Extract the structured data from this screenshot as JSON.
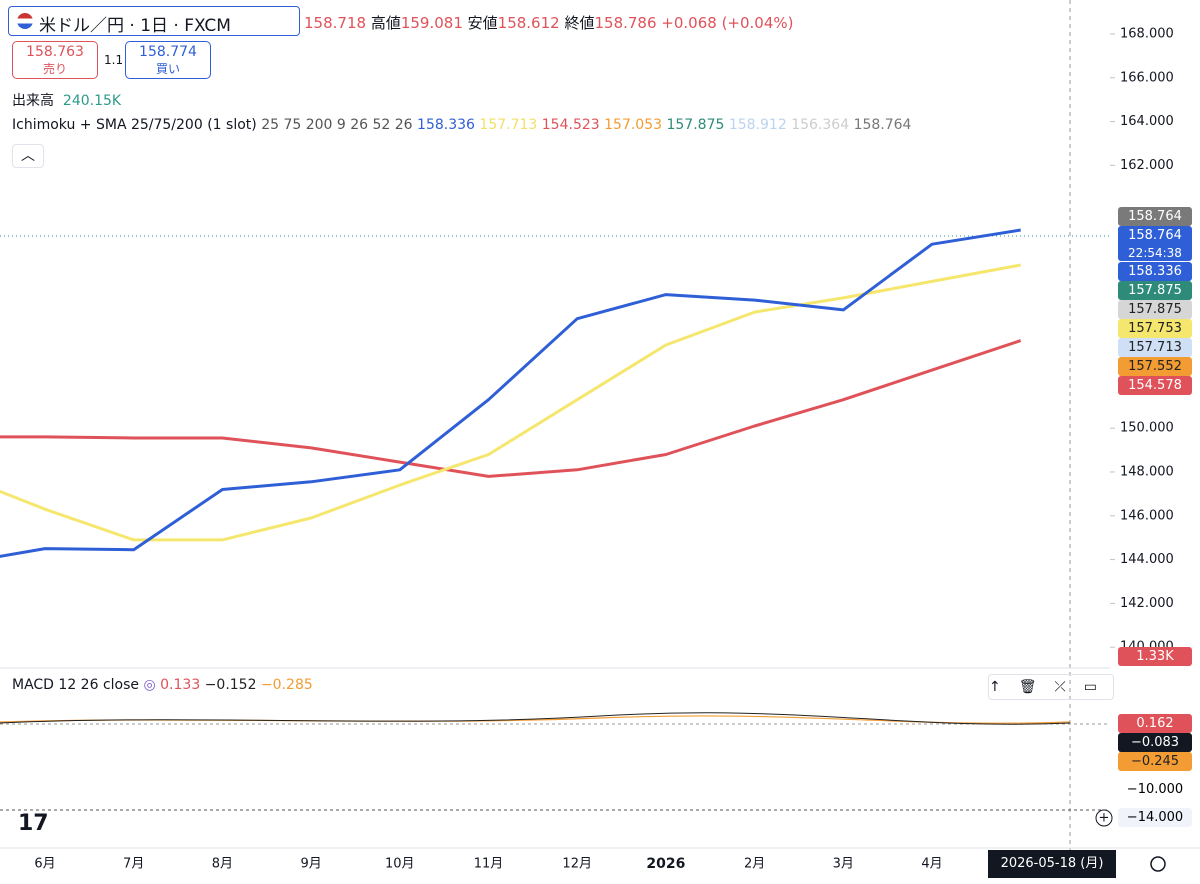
{
  "header": {
    "symbol": "米ドル／円 · 1日 · FXCM",
    "open": "158.718",
    "high_label": "高値",
    "high": "159.081",
    "low_label": "安値",
    "low": "158.612",
    "close_label": "終値",
    "close": "158.786",
    "change": "+0.068 (+0.04%)"
  },
  "trade": {
    "sell_price": "158.763",
    "sell_label": "売り",
    "spread": "1.1",
    "buy_price": "158.774",
    "buy_label": "買い"
  },
  "volume": {
    "label": "出来高",
    "value": "240.15K",
    "badge": "1.33K"
  },
  "ichimoku": {
    "label": "Ichimoku + SMA 25/75/200 (1 slot)",
    "params": "25 75 200 9 26 52 26",
    "values": [
      {
        "text": "158.336",
        "color": "#2f5fd6"
      },
      {
        "text": "157.713",
        "color": "#f2e06a"
      },
      {
        "text": "154.523",
        "color": "#e0525a"
      },
      {
        "text": "157.053",
        "color": "#f39c34"
      },
      {
        "text": "157.875",
        "color": "#2e8b7a"
      },
      {
        "text": "158.912",
        "color": "#b9d3f0"
      },
      {
        "text": "156.364",
        "color": "#cccccc"
      },
      {
        "text": "158.764",
        "color": "#777777"
      }
    ]
  },
  "price_badges": [
    {
      "text": "158.764",
      "color": "#7a7a7a",
      "text_color": "#ffffff"
    },
    {
      "text": "158.764",
      "sub": "22:54:38",
      "color": "#2f5fd6",
      "text_color": "#ffffff"
    },
    {
      "text": "158.336",
      "color": "#2f5fd6",
      "text_color": "#ffffff"
    },
    {
      "text": "157.875",
      "color": "#2e8b7a",
      "text_color": "#ffffff"
    },
    {
      "text": "157.875",
      "color": "#d6d6d6",
      "text_color": "#222222"
    },
    {
      "text": "157.753",
      "color": "#f5e66e",
      "text_color": "#222222"
    },
    {
      "text": "157.713",
      "color": "#cfe0f6",
      "text_color": "#222222"
    },
    {
      "text": "157.552",
      "color": "#f39c34",
      "text_color": "#222222"
    },
    {
      "text": "154.578",
      "color": "#e0525a",
      "text_color": "#ffffff"
    }
  ],
  "macd": {
    "label": "MACD 12 26 close",
    "values": [
      {
        "text": "0.133",
        "color": "#e0525a"
      },
      {
        "text": "−0.152",
        "color": "#222222"
      },
      {
        "text": "−0.285",
        "color": "#f39c34"
      }
    ],
    "badges": [
      {
        "text": "0.162",
        "color": "#e0525a",
        "text_color": "#ffffff"
      },
      {
        "text": "−0.083",
        "color": "#131722",
        "text_color": "#ffffff"
      },
      {
        "text": "−0.245",
        "color": "#f39c34",
        "text_color": "#222222"
      }
    ],
    "axis_labels": [
      "−10.000",
      "−14.000"
    ]
  },
  "date_badge": "2026-05-18 (月)",
  "chart_data": {
    "type": "line",
    "categories": [
      null,
      "6月",
      "7月",
      "8月",
      "9月",
      "10月",
      "11月",
      "12月",
      "2026",
      "2月",
      "3月",
      "4月",
      null
    ],
    "series": [
      {
        "name": "SMA 200",
        "color": "#e0525a",
        "values": [
          149.6,
          149.6,
          149.55,
          149.55,
          149.1,
          148.45,
          147.8,
          148.1,
          148.8,
          150.1,
          151.3,
          152.65,
          154.0
        ]
      },
      {
        "name": "SMA 75",
        "color": "#f5e66e",
        "values": [
          147.9,
          146.3,
          144.9,
          144.9,
          145.9,
          147.4,
          148.8,
          151.3,
          153.8,
          155.3,
          155.95,
          156.7,
          157.45
        ]
      },
      {
        "name": "SMA 25",
        "color": "#2f5fd6",
        "values": [
          143.8,
          144.5,
          144.45,
          147.2,
          147.55,
          148.1,
          151.3,
          155.0,
          156.1,
          155.85,
          155.4,
          158.4,
          159.05
        ]
      }
    ],
    "ylim": [
      139.05,
      169.55
    ],
    "yticks": [
      {
        "value": 168,
        "label": "168.000"
      },
      {
        "value": 166,
        "label": "166.000"
      },
      {
        "value": 164,
        "label": "164.000"
      },
      {
        "value": 162,
        "label": "162.000"
      },
      {
        "value": 150,
        "label": "150.000"
      },
      {
        "value": 148,
        "label": "148.000"
      },
      {
        "value": 146,
        "label": "146.000"
      },
      {
        "value": 144,
        "label": "144.000"
      },
      {
        "value": 142,
        "label": "142.000"
      },
      {
        "value": 140,
        "label": "140.000"
      }
    ]
  }
}
